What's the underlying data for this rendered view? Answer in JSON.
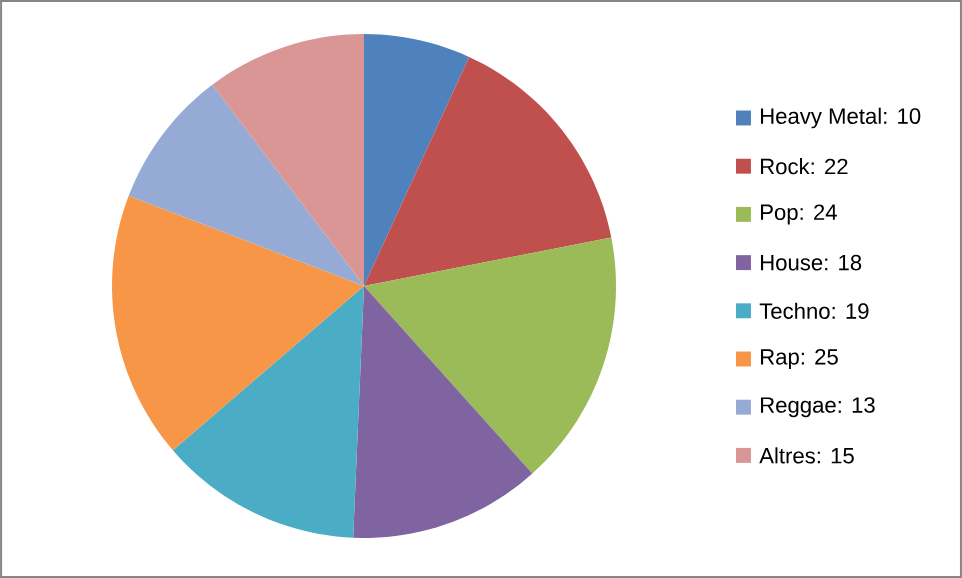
{
  "chart_data": {
    "type": "pie",
    "categories": [
      "Heavy Metal: 10",
      "Rock: 22",
      "Pop: 24",
      "House: 18",
      "Techno: 19",
      "Rap: 25",
      "Reggae: 13",
      "Altres: 15"
    ],
    "values": [
      10,
      22,
      24,
      18,
      19,
      25,
      13,
      15
    ],
    "colors": [
      "#4f81bd",
      "#c0504d",
      "#9bbb59",
      "#8064a2",
      "#4bacc6",
      "#f79646",
      "#95abd5",
      "#d99694"
    ],
    "legend": "right"
  }
}
